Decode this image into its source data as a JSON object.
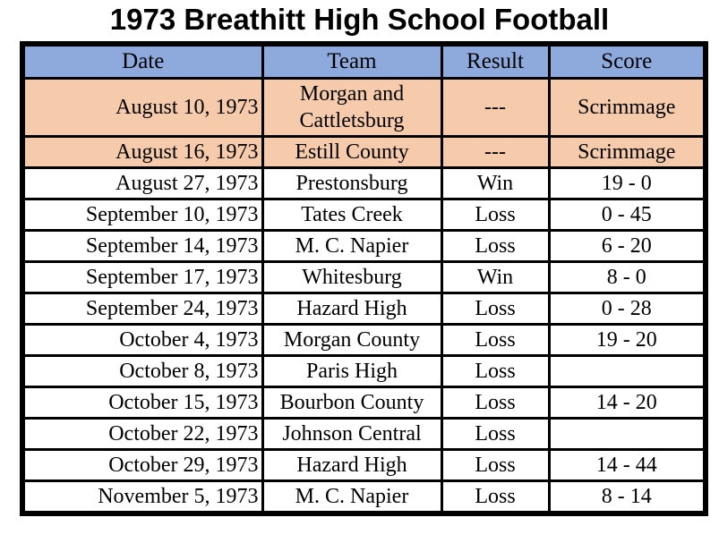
{
  "title": "1973 Breathitt High School Football",
  "colors": {
    "header_bg": "#8EA9DB",
    "scrimmage_bg": "#F6CBAC",
    "row_bg": "#FFFFFF",
    "border": "#000000",
    "text": "#000000"
  },
  "chart_data": {
    "type": "table",
    "title": "1973 Breathitt High School Football",
    "columns": [
      "Date",
      "Team",
      "Result",
      "Score"
    ],
    "rows": [
      {
        "date": "August 10, 1973",
        "team": "Morgan and Cattletsburg",
        "result": "---",
        "score": "Scrimmage",
        "scrimmage": true
      },
      {
        "date": "August 16, 1973",
        "team": "Estill County",
        "result": "---",
        "score": "Scrimmage",
        "scrimmage": true
      },
      {
        "date": "August 27, 1973",
        "team": "Prestonsburg",
        "result": "Win",
        "score": "19 - 0",
        "scrimmage": false
      },
      {
        "date": "September 10, 1973",
        "team": "Tates Creek",
        "result": "Loss",
        "score": "0 - 45",
        "scrimmage": false
      },
      {
        "date": "September 14, 1973",
        "team": "M. C. Napier",
        "result": "Loss",
        "score": "6 - 20",
        "scrimmage": false
      },
      {
        "date": "September 17, 1973",
        "team": "Whitesburg",
        "result": "Win",
        "score": "8 - 0",
        "scrimmage": false
      },
      {
        "date": "September 24, 1973",
        "team": "Hazard High",
        "result": "Loss",
        "score": "0 - 28",
        "scrimmage": false
      },
      {
        "date": "October 4, 1973",
        "team": "Morgan County",
        "result": "Loss",
        "score": "19 - 20",
        "scrimmage": false
      },
      {
        "date": "October 8, 1973",
        "team": "Paris High",
        "result": "Loss",
        "score": "",
        "scrimmage": false
      },
      {
        "date": "October 15, 1973",
        "team": "Bourbon County",
        "result": "Loss",
        "score": "14 - 20",
        "scrimmage": false
      },
      {
        "date": "October 22, 1973",
        "team": "Johnson Central",
        "result": "Loss",
        "score": "",
        "scrimmage": false
      },
      {
        "date": "October 29, 1973",
        "team": "Hazard High",
        "result": "Loss",
        "score": "14 - 44",
        "scrimmage": false
      },
      {
        "date": "November 5, 1973",
        "team": "M. C. Napier",
        "result": "Loss",
        "score": "8 - 14",
        "scrimmage": false
      }
    ]
  }
}
